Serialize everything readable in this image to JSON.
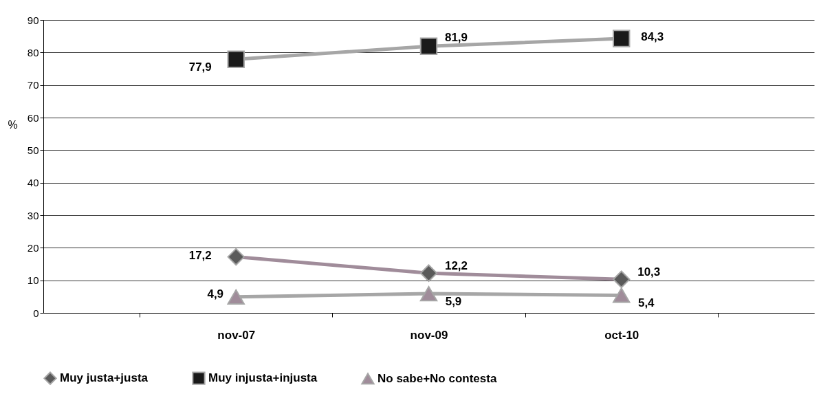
{
  "chart_data": {
    "type": "line",
    "ylabel": "%",
    "categories": [
      "nov-07",
      "nov-09",
      "oct-10"
    ],
    "series": [
      {
        "name": "Muy justa+justa",
        "color": "#a08c9a",
        "marker": "diamond",
        "colors": [
          "#5a5a5a",
          "#5a5a5a",
          "#5a5a5a"
        ],
        "values": [
          17.2,
          12.2,
          10.3
        ],
        "value_labels": [
          "17,2",
          "12,2",
          "10,3"
        ]
      },
      {
        "name": "Muy injusta+injusta",
        "color": "#a6a6a6",
        "marker": "square",
        "colors": [
          "#1a1a1a",
          "#1a1a1a",
          "#1a1a1a"
        ],
        "values": [
          77.9,
          81.9,
          84.3
        ],
        "value_labels": [
          "77,9",
          "81,9",
          "84,3"
        ]
      },
      {
        "name": "No sabe+No contesta",
        "color": "#a6a6a6",
        "marker": "triangle",
        "colors": [
          "#a08c9a",
          "#a08c9a",
          "#a08c9a"
        ],
        "values": [
          4.9,
          5.9,
          5.4
        ],
        "value_labels": [
          "4,9",
          "5,9",
          "5,4"
        ]
      }
    ],
    "ylim": [
      0,
      90
    ],
    "yticks": [
      0,
      10,
      20,
      30,
      40,
      50,
      60,
      70,
      80,
      90
    ],
    "grid": "y",
    "legend": "bottom",
    "line_style": "solid"
  }
}
